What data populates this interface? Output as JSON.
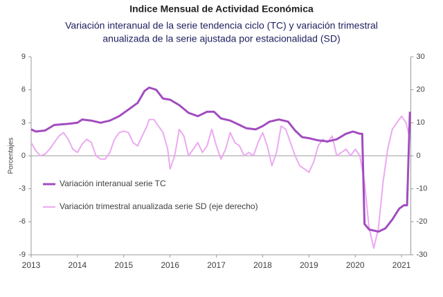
{
  "chart_data": {
    "type": "line",
    "title": "Indice Mensual de  Actividad Económica",
    "subtitle": [
      "Variación interanual de la serie tendencia ciclo (TC) y variación trimestral",
      "anualizada de la serie ajustada por estacionalidad (SD)"
    ],
    "ylabel": "Porcentajes",
    "xlim": [
      2013,
      2021.2
    ],
    "xticks": [
      2013,
      2014,
      2015,
      2016,
      2017,
      2018,
      2019,
      2020,
      2021
    ],
    "ylim": [
      -9,
      9
    ],
    "yticks": [
      9,
      6,
      3,
      0,
      -3,
      -6,
      -9
    ],
    "y2lim": [
      -30,
      30
    ],
    "y2ticks": [
      30,
      20,
      10,
      0,
      -10,
      -20,
      -30
    ],
    "legend": "left",
    "series": [
      {
        "name": "Variación interanual serie TC",
        "color": "#a24cbf",
        "axis": "y",
        "x": [
          2013.0,
          2013.1,
          2013.3,
          2013.5,
          2013.8,
          2014.0,
          2014.1,
          2014.3,
          2014.5,
          2014.7,
          2014.9,
          2015.1,
          2015.3,
          2015.45,
          2015.55,
          2015.7,
          2015.85,
          2016.0,
          2016.2,
          2016.4,
          2016.6,
          2016.8,
          2016.95,
          2017.1,
          2017.3,
          2017.5,
          2017.65,
          2017.85,
          2018.0,
          2018.15,
          2018.35,
          2018.55,
          2018.7,
          2018.85,
          2019.0,
          2019.2,
          2019.4,
          2019.6,
          2019.8,
          2019.95,
          2020.1,
          2020.15,
          2020.2,
          2020.3,
          2020.5,
          2020.65,
          2020.8,
          2020.95,
          2021.05,
          2021.12,
          2021.18
        ],
        "values": [
          2.4,
          2.2,
          2.3,
          2.8,
          2.9,
          3.0,
          3.3,
          3.2,
          3.0,
          3.2,
          3.6,
          4.2,
          4.8,
          5.9,
          6.2,
          6.0,
          5.2,
          5.1,
          4.6,
          3.9,
          3.6,
          4.0,
          4.0,
          3.4,
          3.2,
          2.8,
          2.5,
          2.4,
          2.7,
          3.1,
          3.3,
          3.1,
          2.3,
          1.7,
          1.6,
          1.4,
          1.3,
          1.5,
          2.0,
          2.2,
          2.0,
          2.0,
          -6.2,
          -6.7,
          -6.9,
          -6.6,
          -5.8,
          -4.8,
          -4.5,
          -4.5,
          4.0
        ]
      },
      {
        "name": "Variación trimestral anualizada serie SD (eje derecho)",
        "color": "#eba9f0",
        "axis": "y2",
        "x": [
          2013.0,
          2013.1,
          2013.2,
          2013.3,
          2013.4,
          2013.5,
          2013.6,
          2013.7,
          2013.8,
          2013.9,
          2014.0,
          2014.1,
          2014.2,
          2014.3,
          2014.4,
          2014.5,
          2014.6,
          2014.7,
          2014.8,
          2014.9,
          2015.0,
          2015.1,
          2015.2,
          2015.3,
          2015.4,
          2015.5,
          2015.55,
          2015.65,
          2015.75,
          2015.85,
          2015.95,
          2016.0,
          2016.1,
          2016.2,
          2016.3,
          2016.4,
          2016.5,
          2016.6,
          2016.7,
          2016.8,
          2016.9,
          2017.0,
          2017.1,
          2017.2,
          2017.3,
          2017.4,
          2017.5,
          2017.6,
          2017.7,
          2017.8,
          2017.9,
          2018.0,
          2018.1,
          2018.2,
          2018.3,
          2018.4,
          2018.5,
          2018.6,
          2018.7,
          2018.8,
          2018.9,
          2019.0,
          2019.1,
          2019.2,
          2019.3,
          2019.4,
          2019.5,
          2019.6,
          2019.7,
          2019.8,
          2019.9,
          2020.0,
          2020.1,
          2020.2,
          2020.3,
          2020.4,
          2020.5,
          2020.6,
          2020.7,
          2020.8,
          2020.9,
          2021.0,
          2021.1,
          2021.18
        ],
        "values": [
          4,
          1.5,
          0,
          0.5,
          2,
          4,
          6,
          7,
          5,
          2,
          1,
          3.5,
          5,
          4,
          0,
          -1,
          -1,
          1,
          5,
          7,
          7.5,
          7,
          4,
          3,
          6,
          9,
          11,
          11,
          9,
          7,
          2,
          -4,
          0,
          8,
          6,
          0,
          2,
          4,
          1,
          3,
          8,
          3,
          -1,
          2,
          7,
          4,
          3,
          0,
          1,
          0,
          4,
          7,
          3,
          -3,
          1,
          9,
          8,
          4,
          0,
          -3,
          -4,
          -5,
          -2,
          3,
          5,
          4,
          6,
          0,
          1,
          2,
          0,
          2,
          0,
          -8,
          -22,
          -28,
          -22,
          -8,
          2,
          8,
          10,
          12,
          10,
          5
        ]
      }
    ]
  }
}
